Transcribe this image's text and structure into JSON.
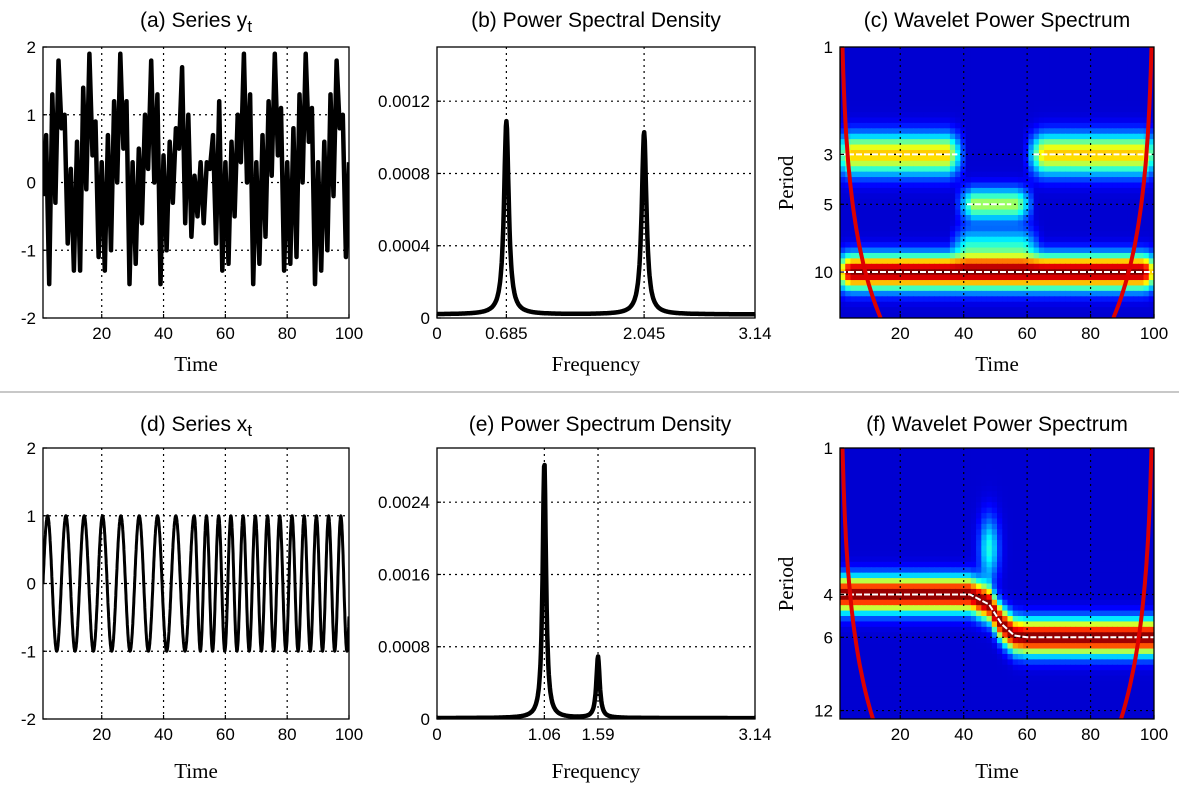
{
  "chart_data": [
    {
      "id": "a",
      "type": "line",
      "title": "(a)  Series y",
      "title_sub": "t",
      "xlabel": "Time",
      "ylabel": "",
      "xlim": [
        1,
        100
      ],
      "ylim": [
        -2,
        2
      ],
      "xticks": [
        20,
        40,
        60,
        80,
        100
      ],
      "yticks": [
        -2,
        -1,
        0,
        1,
        2
      ],
      "xtick_labels": [
        "20",
        "40",
        "60",
        "80",
        "100"
      ],
      "ytick_labels": [
        "-2",
        "-1",
        "0",
        "1",
        "2"
      ],
      "grid": true,
      "series": [
        {
          "x": [
            1,
            2,
            3,
            4,
            5,
            6,
            7,
            8,
            9,
            10,
            11,
            12,
            13,
            14,
            15,
            16,
            17,
            18,
            19,
            20,
            21,
            22,
            23,
            24,
            25,
            26,
            27,
            28,
            29,
            30,
            31,
            32,
            33,
            34,
            35,
            36,
            37,
            38,
            39,
            40,
            41,
            42,
            43,
            44,
            45,
            46,
            47,
            48,
            49,
            50,
            51,
            52,
            53,
            54,
            55,
            56,
            57,
            58,
            59,
            60,
            61,
            62,
            63,
            64,
            65,
            66,
            67,
            68,
            69,
            70,
            71,
            72,
            73,
            74,
            75,
            76,
            77,
            78,
            79,
            80,
            81,
            82,
            83,
            84,
            85,
            86,
            87,
            88,
            89,
            90,
            91,
            92,
            93,
            94,
            95,
            96,
            97,
            98,
            99,
            100
          ],
          "values": [
            -0.2,
            0.7,
            -1.5,
            1.3,
            -0.3,
            1.8,
            0.8,
            1.0,
            -0.9,
            0.2,
            -1.3,
            0.6,
            -1.3,
            1.4,
            -0.1,
            1.9,
            0.4,
            0.9,
            -1.1,
            0.3,
            -1.3,
            0.7,
            -1.0,
            1.2,
            0.0,
            1.9,
            0.5,
            1.2,
            -1.5,
            0.3,
            -1.2,
            0.5,
            -0.6,
            1.0,
            0.2,
            1.8,
            0.0,
            1.3,
            -1.5,
            0.4,
            -1.0,
            0.6,
            -0.3,
            0.8,
            0.5,
            1.7,
            -0.6,
            1.0,
            -0.8,
            0.1,
            -0.5,
            0.3,
            -0.6,
            0.3,
            0.2,
            0.7,
            -0.9,
            1.2,
            -1.3,
            0.3,
            -1.2,
            0.6,
            -0.5,
            1.0,
            0.3,
            1.9,
            0.0,
            1.3,
            -1.5,
            0.3,
            -1.2,
            0.7,
            -0.8,
            1.2,
            0.1,
            1.9,
            0.4,
            1.1,
            -1.3,
            0.3,
            -1.2,
            0.8,
            -1.1,
            1.3,
            0.0,
            1.9,
            0.6,
            1.1,
            -1.5,
            0.3,
            -1.3,
            0.6,
            -1.0,
            1.3,
            -0.2,
            1.8,
            0.8,
            1.0,
            -1.1,
            0.3
          ]
        }
      ]
    },
    {
      "id": "b",
      "type": "line",
      "title": "(b)  Power Spectral Density",
      "xlabel": "Frequency",
      "ylabel": "",
      "xlim": [
        0,
        3.14
      ],
      "ylim": [
        0,
        0.0015
      ],
      "xticks": [
        0,
        0.685,
        2.045,
        3.14
      ],
      "yticks": [
        0,
        0.0004,
        0.0008,
        0.0012
      ],
      "xtick_labels": [
        "0",
        "0.685",
        "2.045",
        "3.14"
      ],
      "ytick_labels": [
        "0",
        "0.0004",
        "0.0008",
        "0.0012"
      ],
      "grid": true,
      "peaks": [
        {
          "freq": 0.685,
          "value": 0.00107
        },
        {
          "freq": 2.045,
          "value": 0.00101
        }
      ],
      "baseline": 2e-05
    },
    {
      "id": "c",
      "type": "heatmap",
      "title": "(c) Wavelet Power Spectrum",
      "xlabel": "Time",
      "ylabel": "Period",
      "xlim": [
        1,
        100
      ],
      "period_range": [
        1,
        16
      ],
      "xticks": [
        20,
        40,
        60,
        80,
        100
      ],
      "yticks": [
        1,
        3,
        5,
        10
      ],
      "xtick_labels": [
        "20",
        "40",
        "60",
        "80",
        "100"
      ],
      "ytick_labels": [
        "1",
        "3",
        "5",
        "10"
      ],
      "grid": true,
      "bands": [
        {
          "period": 10,
          "t_start": 1,
          "t_end": 100,
          "strength": 1.0
        },
        {
          "period": 3,
          "t_start": 1,
          "t_end": 38,
          "strength": 0.65
        },
        {
          "period": 3,
          "t_start": 62,
          "t_end": 100,
          "strength": 0.65
        },
        {
          "period": 5,
          "t_start": 40,
          "t_end": 60,
          "strength": 0.5
        },
        {
          "period": 7.5,
          "t_start": 38,
          "t_end": 62,
          "strength": 0.3
        }
      ],
      "ridges": [
        {
          "period": 3,
          "t_start": 1,
          "t_end": 38
        },
        {
          "period": 3,
          "t_start": 62,
          "t_end": 100
        },
        {
          "period": 5,
          "t_start": 41,
          "t_end": 55
        },
        {
          "period": 10,
          "t_start": 1,
          "t_end": 100
        }
      ],
      "coi_color": "#dd0000",
      "ridge_color": "#ffffff"
    },
    {
      "id": "d",
      "type": "line",
      "title": "(d)  Series x",
      "title_sub": "t",
      "xlabel": "Time",
      "ylabel": "",
      "xlim": [
        1,
        100
      ],
      "ylim": [
        -2,
        2
      ],
      "xticks": [
        20,
        40,
        60,
        80,
        100
      ],
      "yticks": [
        -2,
        -1,
        0,
        1,
        2
      ],
      "xtick_labels": [
        "20",
        "40",
        "60",
        "80",
        "100"
      ],
      "ytick_labels": [
        "-2",
        "-1",
        "0",
        "1",
        "2"
      ],
      "grid": true,
      "series": [
        {
          "segments": [
            {
              "t_start": 1,
              "t_end": 50,
              "frequency": 1.06,
              "amplitude": 1.0
            },
            {
              "t_start": 50,
              "t_end": 100,
              "frequency": 1.59,
              "amplitude": 1.0
            }
          ]
        }
      ]
    },
    {
      "id": "e",
      "type": "line",
      "title": "(e)  Power Spectrum Density",
      "xlabel": "Frequency",
      "ylabel": "",
      "xlim": [
        0,
        3.14
      ],
      "ylim": [
        0,
        0.003
      ],
      "xticks": [
        0,
        1.06,
        1.59,
        3.14
      ],
      "yticks": [
        0,
        0.0008,
        0.0016,
        0.0024
      ],
      "xtick_labels": [
        "0",
        "1.06",
        "1.59",
        "3.14"
      ],
      "ytick_labels": [
        "0",
        "0.0008",
        "0.0016",
        "0.0024"
      ],
      "grid": true,
      "peaks": [
        {
          "freq": 1.06,
          "value": 0.00284
        },
        {
          "freq": 1.59,
          "value": 0.00068
        }
      ],
      "baseline": 1e-05
    },
    {
      "id": "f",
      "type": "heatmap",
      "title": "(f) Wavelet Power Spectrum",
      "xlabel": "Time",
      "ylabel": "Period",
      "xlim": [
        1,
        100
      ],
      "period_range": [
        1,
        13
      ],
      "xticks": [
        20,
        40,
        60,
        80,
        100
      ],
      "yticks": [
        1,
        4,
        6,
        12
      ],
      "xtick_labels": [
        "20",
        "40",
        "60",
        "80",
        "100"
      ],
      "ytick_labels": [
        "1",
        "4",
        "6",
        "12"
      ],
      "grid": true,
      "ridge_path": [
        [
          1,
          4
        ],
        [
          42,
          4
        ],
        [
          48,
          4.4
        ],
        [
          52,
          5.3
        ],
        [
          56,
          5.9
        ],
        [
          60,
          6
        ],
        [
          100,
          6
        ]
      ],
      "band_strength": 1.0,
      "coi_color": "#dd0000",
      "ridge_color": "#ffffff"
    }
  ]
}
